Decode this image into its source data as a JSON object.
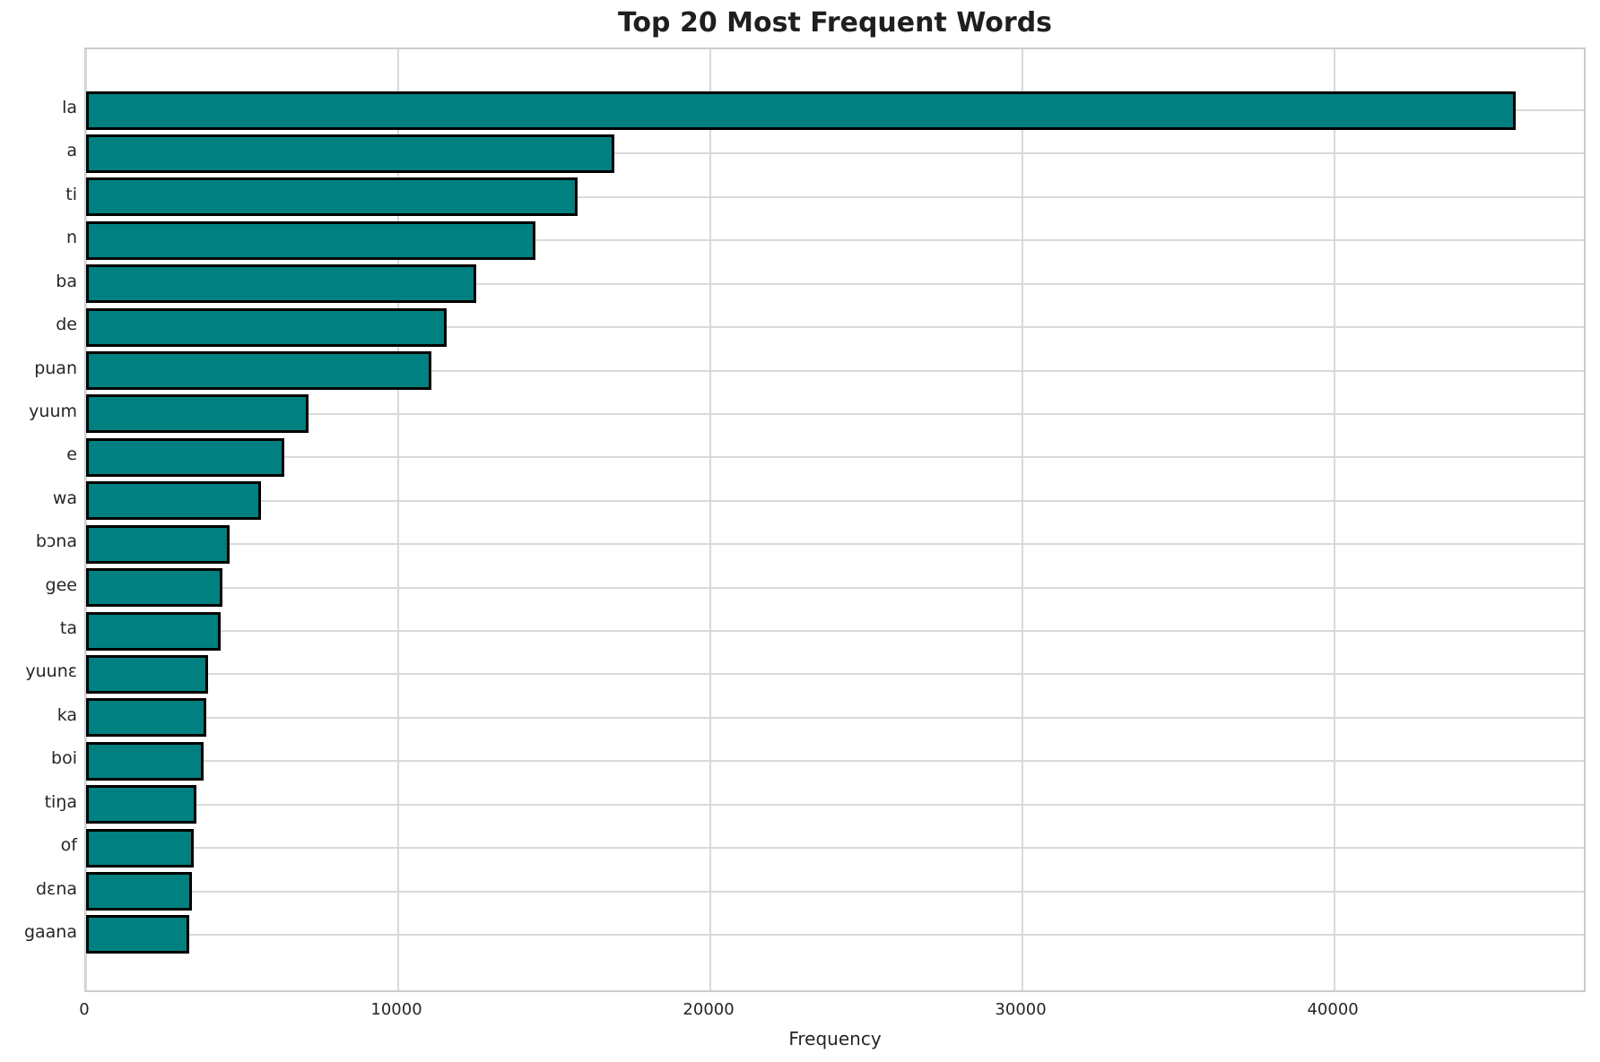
{
  "chart_data": {
    "type": "bar",
    "orientation": "horizontal",
    "title": "Top 20 Most Frequent Words",
    "xlabel": "Frequency",
    "ylabel": "",
    "categories": [
      "la",
      "a",
      "ti",
      "n",
      "ba",
      "de",
      "puan",
      "yuum",
      "e",
      "wa",
      "bɔna",
      "gee",
      "ta",
      "yuunɛ",
      "ka",
      "boi",
      "tiŋa",
      "of",
      "dɛna",
      "gaana"
    ],
    "values": [
      45900,
      16960,
      15770,
      14420,
      12540,
      11590,
      11090,
      7140,
      6360,
      5610,
      4610,
      4370,
      4320,
      3910,
      3860,
      3760,
      3530,
      3460,
      3390,
      3310
    ],
    "xlim": [
      0,
      48100
    ],
    "xticks": [
      0,
      10000,
      20000,
      30000,
      40000
    ],
    "grid": true,
    "legend": "none",
    "bar_color": "#008080",
    "bar_edge_color": "#000000",
    "grid_color": "#d9d9d9",
    "text_color": "#262626"
  }
}
